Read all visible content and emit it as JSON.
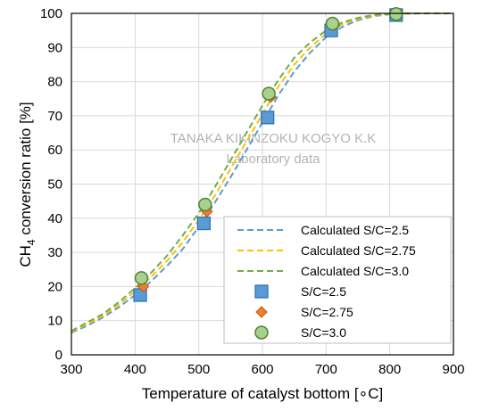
{
  "chart_data": {
    "type": "line",
    "title": "",
    "xlabel": "Temperature of catalyst bottom [∘C]",
    "ylabel_prefix": "CH",
    "ylabel_sub": "4",
    "ylabel_suffix": " conversion ratio [%]",
    "xlim": [
      300,
      900
    ],
    "ylim": [
      0,
      100
    ],
    "xticks": [
      300,
      400,
      500,
      600,
      700,
      800,
      900
    ],
    "yticks": [
      0,
      10,
      20,
      30,
      40,
      50,
      60,
      70,
      80,
      90,
      100
    ],
    "grid": true,
    "legend_position": "bottom-right",
    "watermark": [
      "TANAKA KIKINZOKU KOGYO K.K",
      "Laboratory data"
    ],
    "series": [
      {
        "name": "Calculated S/C=2.5",
        "kind": "line",
        "color": "#5b9bd5",
        "x": [
          300,
          325,
          350,
          375,
          400,
          425,
          450,
          475,
          500,
          525,
          550,
          575,
          600,
          625,
          650,
          675,
          700,
          725,
          750,
          775,
          800,
          825,
          850,
          875,
          900
        ],
        "y": [
          6.5,
          8.5,
          11,
          14,
          17.5,
          21.5,
          26,
          31,
          37.5,
          44.5,
          52,
          60,
          68,
          76,
          83,
          88.5,
          93,
          96,
          98,
          99.2,
          99.7,
          99.9,
          100,
          100,
          100
        ]
      },
      {
        "name": "Calculated S/C=2.75",
        "kind": "line",
        "color": "#ffc000",
        "x": [
          300,
          325,
          350,
          375,
          400,
          425,
          450,
          475,
          500,
          525,
          550,
          575,
          600,
          625,
          650,
          675,
          700,
          725,
          750,
          775,
          800,
          825,
          850,
          875,
          900
        ],
        "y": [
          6.8,
          9,
          11.5,
          14.8,
          18.5,
          22.8,
          27.5,
          33,
          39.5,
          46.5,
          54.5,
          62.5,
          70.5,
          78.5,
          85,
          90,
          94,
          96.8,
          98.4,
          99.3,
          99.8,
          99.9,
          100,
          100,
          100
        ]
      },
      {
        "name": "Calculated S/C=3.0",
        "kind": "line",
        "color": "#70ad47",
        "x": [
          300,
          325,
          350,
          375,
          400,
          425,
          450,
          475,
          500,
          525,
          550,
          575,
          600,
          625,
          650,
          675,
          700,
          725,
          750,
          775,
          800,
          825,
          850,
          875,
          900
        ],
        "y": [
          7,
          9.5,
          12,
          15.5,
          19.5,
          24,
          29,
          35,
          41.5,
          49,
          57,
          65,
          73,
          80.5,
          87,
          91.5,
          95,
          97.3,
          98.7,
          99.5,
          99.8,
          100,
          100,
          100,
          100
        ]
      },
      {
        "name": "S/C=2.5",
        "kind": "marker",
        "marker": "square",
        "color": "#5b9bd5",
        "edge": "#2e75b6",
        "x": [
          408,
          508,
          608,
          708,
          810
        ],
        "y": [
          17.5,
          38.5,
          69.5,
          95,
          99.5
        ]
      },
      {
        "name": "S/C=2.75",
        "kind": "marker",
        "marker": "diamond",
        "color": "#ed7d31",
        "edge": "#c55a11",
        "x": [
          413,
          513,
          613,
          713,
          812
        ],
        "y": [
          20,
          42,
          75.5,
          96.5,
          99.8
        ]
      },
      {
        "name": "S/C=3.0",
        "kind": "marker",
        "marker": "circle",
        "color": "#a9d18e",
        "edge": "#548235",
        "x": [
          410,
          510,
          610,
          710,
          810
        ],
        "y": [
          22.5,
          44,
          76.5,
          97,
          99.8
        ]
      }
    ]
  }
}
